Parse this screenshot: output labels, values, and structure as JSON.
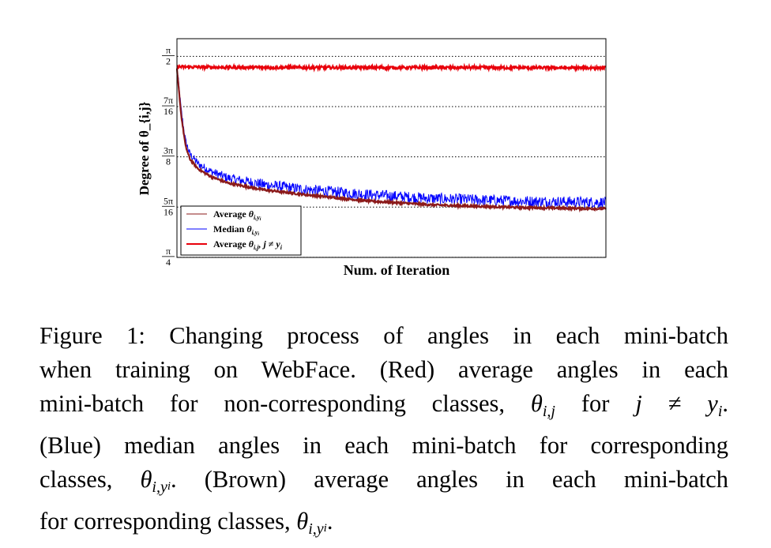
{
  "chart_data": {
    "type": "line",
    "xlabel": "Num. of Iteration",
    "ylabel": "Degree of θ_{i,j}",
    "y_ticks": [
      {
        "num": "π",
        "den": "4",
        "value": 0.7854
      },
      {
        "num": "5π",
        "den": "16",
        "value": 0.9817
      },
      {
        "num": "3π",
        "den": "8",
        "value": 1.1781
      },
      {
        "num": "7π",
        "den": "16",
        "value": 1.3744
      },
      {
        "num": "π",
        "den": "2",
        "value": 1.5708
      }
    ],
    "ylim": [
      0.785,
      1.64
    ],
    "xlim": [
      0,
      1
    ],
    "grid": "horizontal dotted at y ticks",
    "legend_position": "lower-left",
    "series": [
      {
        "name": "Average θ_{i,y_i}",
        "color": "#8b1a1a",
        "x": [
          0,
          0.01,
          0.02,
          0.03,
          0.05,
          0.08,
          0.12,
          0.2,
          0.3,
          0.45,
          0.6,
          0.8,
          1.0
        ],
        "y": [
          1.52,
          1.34,
          1.22,
          1.17,
          1.13,
          1.1,
          1.075,
          1.05,
          1.03,
          1.005,
          0.99,
          0.98,
          0.975
        ]
      },
      {
        "name": "Median θ_{i,y_i}",
        "color": "#0000ff",
        "x": [
          0,
          0.01,
          0.02,
          0.03,
          0.05,
          0.08,
          0.12,
          0.2,
          0.3,
          0.45,
          0.6,
          0.8,
          1.0
        ],
        "y": [
          1.53,
          1.36,
          1.24,
          1.19,
          1.15,
          1.12,
          1.095,
          1.07,
          1.05,
          1.03,
          1.015,
          1.005,
          1.0
        ]
      },
      {
        "name": "Average θ_{i,j}, j ≠ y_i",
        "color": "#e8000b",
        "x": [
          0,
          0.1,
          0.3,
          0.5,
          0.7,
          0.9,
          1.0
        ],
        "y": [
          1.53,
          1.528,
          1.527,
          1.527,
          1.527,
          1.526,
          1.526
        ]
      }
    ]
  },
  "legend": {
    "item1": {
      "label": "Average",
      "sym": "θ",
      "sub": "i,y",
      "subsub": "i"
    },
    "item2": {
      "label": "Median",
      "sym": "θ",
      "sub": "i,y",
      "subsub": "i"
    },
    "item3": {
      "label": "Average",
      "sym": "θ",
      "sub": "i,j",
      "tail": ", j ≠ y",
      "tailsub": "i"
    }
  },
  "caption": {
    "line1": "Figure 1: Changing process of angles in each mini-batch",
    "line2": "when training on WebFace. (Red) average angles in each",
    "line3a": "mini-batch for non-corresponding classes,",
    "line3_theta": "θ",
    "line3_sub": "i,j",
    "line3b": "for",
    "line3_expr": "j ≠ y",
    "line3_expr_sub": "i",
    "line3_end": ".",
    "line4": "(Blue) median angles in each mini-batch for corresponding",
    "line5a": "classes,",
    "line5_theta": "θ",
    "line5_sub": "i,y",
    "line5_subsub": "i",
    "line5b": ". (Brown) average angles in each mini-batch",
    "line6a": "for corresponding classes,",
    "line6_theta": "θ",
    "line6_sub": "i,y",
    "line6_subsub": "i",
    "line6_end": "."
  }
}
